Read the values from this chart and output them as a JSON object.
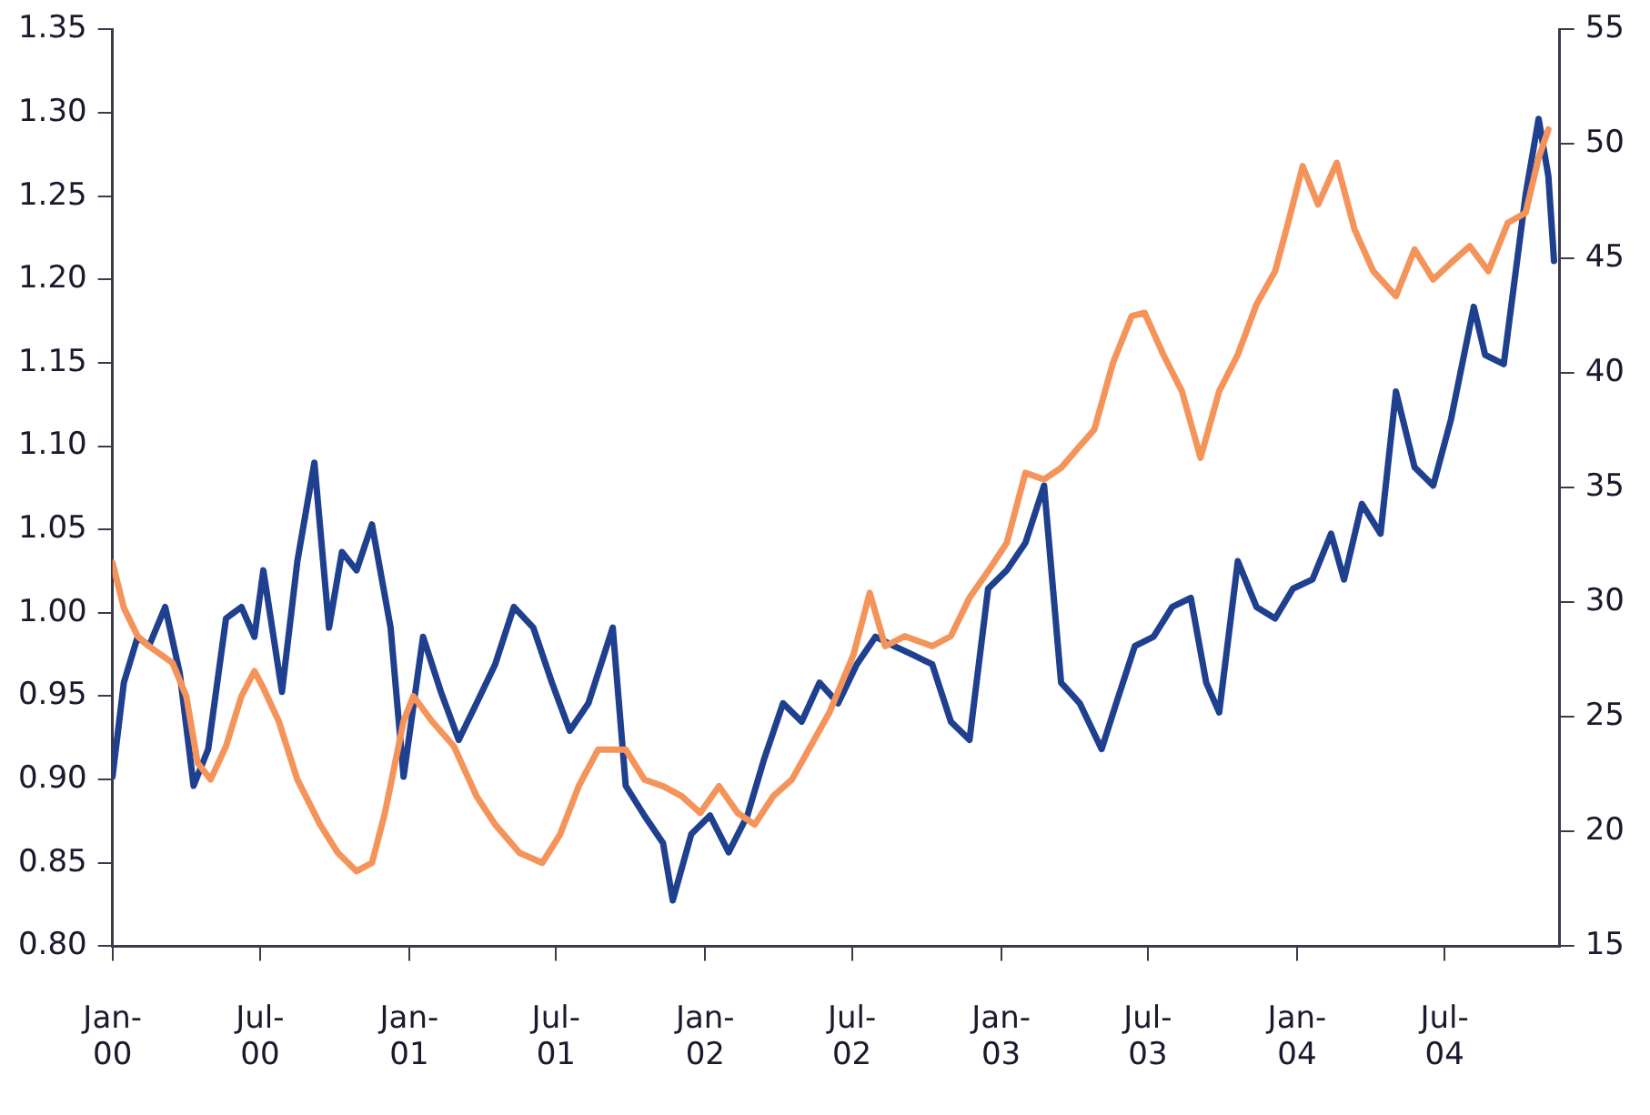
{
  "chart_data": {
    "type": "line",
    "legend": false,
    "grid": false,
    "marker": "none",
    "line_style": "solid",
    "xlim": [
      "2000-01-01",
      "2004-11-20"
    ],
    "xticks": [
      {
        "value": "2000-01-01",
        "label": "Jan-00"
      },
      {
        "value": "2000-07-01",
        "label": "Jul-00"
      },
      {
        "value": "2001-01-01",
        "label": "Jan-01"
      },
      {
        "value": "2001-07-01",
        "label": "Jul-01"
      },
      {
        "value": "2002-01-01",
        "label": "Jan-02"
      },
      {
        "value": "2002-07-01",
        "label": "Jul-02"
      },
      {
        "value": "2003-01-01",
        "label": "Jan-03"
      },
      {
        "value": "2003-07-01",
        "label": "Jul-03"
      },
      {
        "value": "2004-01-01",
        "label": "Jan-04"
      },
      {
        "value": "2004-07-01",
        "label": "Jul-04"
      }
    ],
    "ylim": [
      0.8,
      1.35
    ],
    "yticks": [
      {
        "value": 0.8,
        "label": "0.80"
      },
      {
        "value": 0.85,
        "label": "0.85"
      },
      {
        "value": 0.9,
        "label": "0.90"
      },
      {
        "value": 0.95,
        "label": "0.95"
      },
      {
        "value": 1.0,
        "label": "1.00"
      },
      {
        "value": 1.05,
        "label": "1.05"
      },
      {
        "value": 1.1,
        "label": "1.10"
      },
      {
        "value": 1.15,
        "label": "1.15"
      },
      {
        "value": 1.2,
        "label": "1.20"
      },
      {
        "value": 1.25,
        "label": "1.25"
      },
      {
        "value": 1.3,
        "label": "1.30"
      },
      {
        "value": 1.35,
        "label": "1.35"
      }
    ],
    "y2lim": [
      15,
      55
    ],
    "y2ticks": [
      15,
      20,
      25,
      30,
      35,
      40,
      45,
      50,
      55
    ],
    "series": [
      {
        "color": "#f4945a",
        "x": [
          "2000-01-01",
          "2000-01-15",
          "2000-02-01",
          "2000-02-15",
          "2000-03-15",
          "2000-04-01",
          "2000-04-15",
          "2000-05-01",
          "2000-05-20",
          "2000-06-08",
          "2000-06-24",
          "2000-07-05",
          "2000-07-24",
          "2000-08-16",
          "2000-09-13",
          "2000-10-05",
          "2000-10-28",
          "2000-11-16",
          "2000-12-02",
          "2000-12-25",
          "2001-01-06",
          "2001-01-29",
          "2001-02-25",
          "2001-03-25",
          "2001-04-17",
          "2001-05-17",
          "2001-06-14",
          "2001-07-06",
          "2001-07-29",
          "2001-08-22",
          "2001-09-25",
          "2001-10-18",
          "2001-11-10",
          "2001-12-03",
          "2001-12-26",
          "2002-01-18",
          "2002-02-10",
          "2002-03-03",
          "2002-03-26",
          "2002-04-18",
          "2002-05-11",
          "2002-06-03",
          "2002-07-03",
          "2002-07-23",
          "2002-08-11",
          "2002-09-04",
          "2002-10-08",
          "2002-10-31",
          "2002-11-23",
          "2002-12-16",
          "2003-01-08",
          "2003-01-31",
          "2003-02-23",
          "2003-03-16",
          "2003-04-08",
          "2003-04-26",
          "2003-05-19",
          "2003-06-11",
          "2003-06-27",
          "2003-07-20",
          "2003-08-12",
          "2003-09-04",
          "2003-09-27",
          "2003-10-20",
          "2003-11-12",
          "2003-12-05",
          "2003-12-21",
          "2004-01-08",
          "2004-01-27",
          "2004-02-19",
          "2004-03-12",
          "2004-04-04",
          "2004-05-02",
          "2004-05-25",
          "2004-06-17",
          "2004-07-09",
          "2004-08-01",
          "2004-08-24",
          "2004-09-17",
          "2004-10-09",
          "2004-10-25",
          "2004-11-06"
        ],
        "values": [
          1.03,
          1.003,
          0.986,
          0.98,
          0.97,
          0.95,
          0.91,
          0.9,
          0.92,
          0.95,
          0.965,
          0.955,
          0.935,
          0.9,
          0.873,
          0.856,
          0.845,
          0.85,
          0.88,
          0.935,
          0.95,
          0.935,
          0.92,
          0.89,
          0.873,
          0.856,
          0.85,
          0.867,
          0.896,
          0.918,
          0.918,
          0.9,
          0.896,
          0.89,
          0.88,
          0.896,
          0.88,
          0.873,
          0.89,
          0.9,
          0.92,
          0.94,
          0.975,
          1.012,
          0.98,
          0.986,
          0.98,
          0.986,
          1.009,
          1.025,
          1.042,
          1.084,
          1.08,
          1.087,
          1.1,
          1.11,
          1.15,
          1.178,
          1.18,
          1.155,
          1.133,
          1.093,
          1.133,
          1.155,
          1.185,
          1.205,
          1.234,
          1.268,
          1.245,
          1.27,
          1.23,
          1.205,
          1.19,
          1.218,
          1.2,
          1.21,
          1.22,
          1.205,
          1.234,
          1.24,
          1.273,
          1.29
        ]
      },
      {
        "color": "#1f3f8f",
        "axis": "y2",
        "x": [
          "2000-01-01",
          "2000-01-15",
          "2000-02-01",
          "2000-02-15",
          "2000-03-06",
          "2000-03-24",
          "2000-04-10",
          "2000-04-28",
          "2000-05-20",
          "2000-06-08",
          "2000-06-24",
          "2000-07-05",
          "2000-07-28",
          "2000-08-16",
          "2000-09-06",
          "2000-09-24",
          "2000-10-10",
          "2000-10-28",
          "2000-11-16",
          "2000-12-09",
          "2000-12-25",
          "2001-01-18",
          "2001-02-09",
          "2001-03-03",
          "2001-03-25",
          "2001-04-17",
          "2001-05-10",
          "2001-06-03",
          "2001-06-26",
          "2001-07-18",
          "2001-08-10",
          "2001-09-09",
          "2001-09-25",
          "2001-10-18",
          "2001-11-10",
          "2001-11-22",
          "2001-12-15",
          "2002-01-07",
          "2002-01-30",
          "2002-02-22",
          "2002-03-15",
          "2002-04-07",
          "2002-04-30",
          "2002-05-22",
          "2002-06-14",
          "2002-07-07",
          "2002-07-30",
          "2002-08-22",
          "2002-09-15",
          "2002-10-08",
          "2002-10-31",
          "2002-11-23",
          "2002-12-16",
          "2003-01-08",
          "2003-01-31",
          "2003-02-23",
          "2003-03-16",
          "2003-04-08",
          "2003-05-05",
          "2003-05-23",
          "2003-06-15",
          "2003-07-08",
          "2003-07-31",
          "2003-08-23",
          "2003-09-11",
          "2003-09-27",
          "2003-10-20",
          "2003-11-12",
          "2003-12-05",
          "2003-12-27",
          "2004-01-20",
          "2004-02-12",
          "2004-02-28",
          "2004-03-21",
          "2004-04-13",
          "2004-05-02",
          "2004-05-25",
          "2004-06-17",
          "2004-07-09",
          "2004-08-06",
          "2004-08-20",
          "2004-09-12",
          "2004-10-09",
          "2004-10-25",
          "2004-11-06",
          "2004-11-13"
        ],
        "values": [
          22.4,
          26.5,
          28.5,
          28.1,
          29.8,
          26.9,
          22.0,
          23.6,
          29.3,
          29.8,
          28.5,
          31.4,
          26.1,
          31.8,
          36.1,
          28.9,
          32.2,
          31.4,
          33.4,
          28.9,
          22.4,
          28.5,
          26.1,
          24.0,
          25.6,
          27.3,
          29.8,
          28.9,
          26.5,
          24.4,
          25.6,
          28.9,
          22.0,
          20.7,
          19.5,
          17.0,
          19.9,
          20.7,
          19.1,
          20.7,
          23.2,
          25.6,
          24.8,
          26.5,
          25.6,
          27.3,
          28.5,
          28.1,
          27.7,
          27.3,
          24.8,
          24.0,
          30.6,
          31.4,
          32.6,
          35.1,
          26.5,
          25.6,
          23.6,
          25.6,
          28.1,
          28.5,
          29.8,
          30.2,
          26.5,
          25.2,
          31.8,
          29.8,
          29.3,
          30.6,
          31.0,
          33.0,
          31.0,
          34.3,
          33.0,
          39.2,
          35.9,
          35.1,
          38.0,
          42.9,
          40.8,
          40.4,
          47.8,
          51.1,
          48.6,
          44.9
        ]
      }
    ]
  }
}
